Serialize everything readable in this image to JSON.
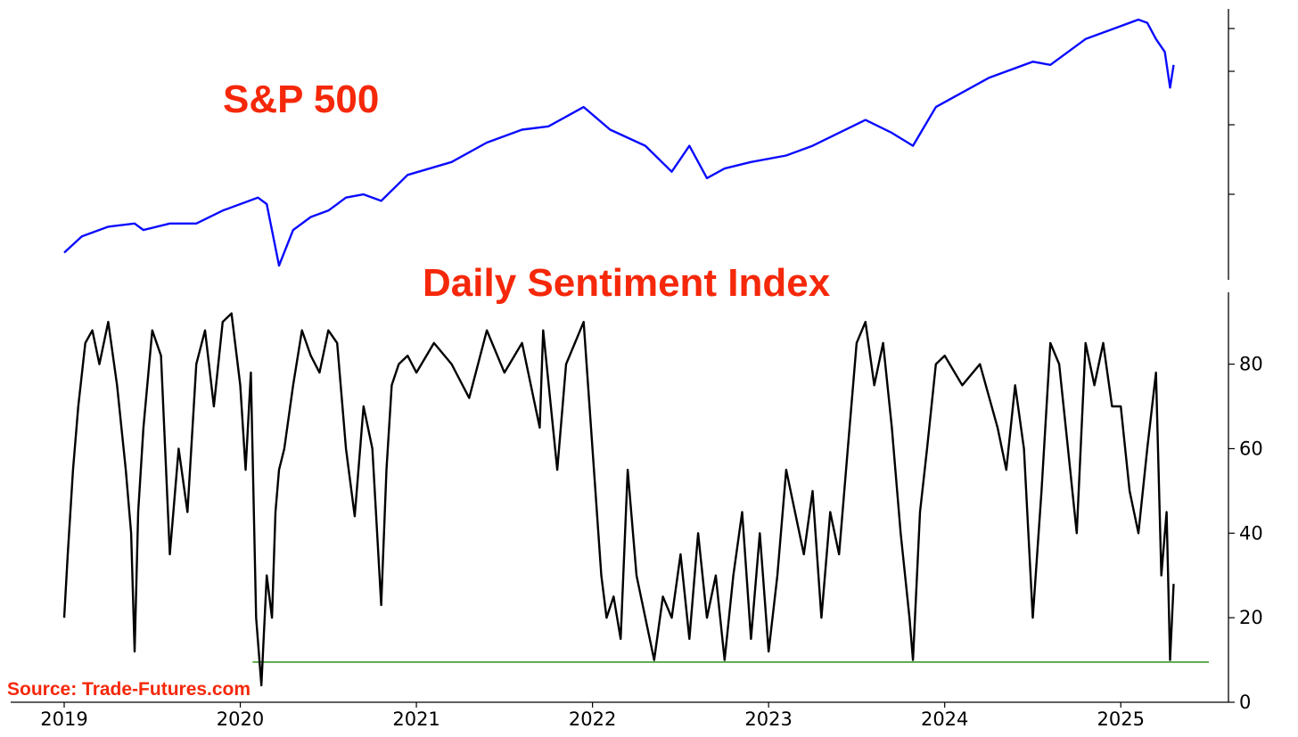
{
  "colors": {
    "sp500": "#0a0aff",
    "dsi": "#000000",
    "threshold": "#3c9a2c",
    "title": "#f5280a",
    "axis": "#000000"
  },
  "labels": {
    "sp500_title": "S&P 500",
    "dsi_title": "Daily Sentiment Index",
    "source": "Source: Trade-Futures.com"
  },
  "chart_data": [
    {
      "type": "line",
      "title": "S&P 500",
      "series": [
        {
          "name": "S&P 500",
          "x": [
            2019.0,
            2019.1,
            2019.25,
            2019.4,
            2019.45,
            2019.6,
            2019.75,
            2019.9,
            2020.1,
            2020.15,
            2020.22,
            2020.3,
            2020.4,
            2020.5,
            2020.6,
            2020.7,
            2020.8,
            2020.95,
            2021.2,
            2021.4,
            2021.6,
            2021.75,
            2021.85,
            2021.95,
            2022.1,
            2022.3,
            2022.45,
            2022.55,
            2022.65,
            2022.75,
            2022.9,
            2023.1,
            2023.25,
            2023.55,
            2023.7,
            2023.82,
            2023.95,
            2024.25,
            2024.5,
            2024.6,
            2024.8,
            2024.95,
            2025.1,
            2025.15,
            2025.2,
            2025.25,
            2025.28,
            2025.3
          ],
          "values": [
            2500,
            2750,
            2900,
            2950,
            2850,
            2950,
            2950,
            3150,
            3350,
            3250,
            2300,
            2850,
            3050,
            3150,
            3350,
            3400,
            3300,
            3700,
            3900,
            4200,
            4400,
            4450,
            4600,
            4750,
            4400,
            4150,
            3750,
            4150,
            3650,
            3800,
            3900,
            4000,
            4150,
            4550,
            4350,
            4150,
            4750,
            5200,
            5450,
            5400,
            5800,
            5950,
            6100,
            6050,
            5800,
            5600,
            5050,
            5400
          ]
        }
      ]
    },
    {
      "type": "line",
      "title": "Daily Sentiment Index",
      "xlim": [
        2019,
        2025.5
      ],
      "ylim": [
        0,
        97
      ],
      "x_ticks": [
        "2019",
        "2020",
        "2021",
        "2022",
        "2023",
        "2024",
        "2025"
      ],
      "y_ticks": [
        "0",
        "20",
        "40",
        "60",
        "80"
      ],
      "threshold": 9.5,
      "series": [
        {
          "name": "Daily Sentiment Index",
          "x": [
            2019.0,
            2019.02,
            2019.05,
            2019.08,
            2019.12,
            2019.16,
            2019.2,
            2019.25,
            2019.3,
            2019.35,
            2019.38,
            2019.4,
            2019.42,
            2019.45,
            2019.5,
            2019.55,
            2019.6,
            2019.65,
            2019.7,
            2019.75,
            2019.8,
            2019.85,
            2019.9,
            2019.95,
            2020.0,
            2020.03,
            2020.06,
            2020.09,
            2020.12,
            2020.15,
            2020.18,
            2020.2,
            2020.22,
            2020.25,
            2020.3,
            2020.35,
            2020.4,
            2020.45,
            2020.5,
            2020.55,
            2020.6,
            2020.65,
            2020.7,
            2020.75,
            2020.8,
            2020.83,
            2020.86,
            2020.9,
            2020.95,
            2021.0,
            2021.1,
            2021.2,
            2021.3,
            2021.4,
            2021.5,
            2021.6,
            2021.7,
            2021.72,
            2021.8,
            2021.85,
            2021.9,
            2021.95,
            2022.0,
            2022.05,
            2022.08,
            2022.12,
            2022.16,
            2022.2,
            2022.25,
            2022.3,
            2022.35,
            2022.4,
            2022.45,
            2022.5,
            2022.55,
            2022.6,
            2022.65,
            2022.7,
            2022.75,
            2022.8,
            2022.85,
            2022.9,
            2022.95,
            2023.0,
            2023.05,
            2023.1,
            2023.15,
            2023.2,
            2023.25,
            2023.3,
            2023.35,
            2023.4,
            2023.45,
            2023.5,
            2023.55,
            2023.6,
            2023.65,
            2023.7,
            2023.75,
            2023.8,
            2023.82,
            2023.86,
            2023.9,
            2023.95,
            2024.0,
            2024.1,
            2024.2,
            2024.3,
            2024.35,
            2024.4,
            2024.45,
            2024.5,
            2024.55,
            2024.6,
            2024.65,
            2024.7,
            2024.75,
            2024.8,
            2024.85,
            2024.9,
            2024.95,
            2025.0,
            2025.05,
            2025.1,
            2025.15,
            2025.2,
            2025.23,
            2025.26,
            2025.28,
            2025.3
          ],
          "values": [
            20,
            35,
            55,
            70,
            85,
            88,
            80,
            90,
            75,
            55,
            40,
            12,
            45,
            65,
            88,
            82,
            35,
            60,
            45,
            80,
            88,
            70,
            90,
            92,
            75,
            55,
            78,
            20,
            4,
            30,
            20,
            45,
            55,
            60,
            75,
            88,
            82,
            78,
            88,
            85,
            60,
            44,
            70,
            60,
            23,
            55,
            75,
            80,
            82,
            78,
            85,
            80,
            72,
            88,
            78,
            85,
            65,
            88,
            55,
            80,
            85,
            90,
            60,
            30,
            20,
            25,
            15,
            55,
            30,
            20,
            10,
            25,
            20,
            35,
            15,
            40,
            20,
            30,
            10,
            30,
            45,
            15,
            40,
            12,
            30,
            55,
            45,
            35,
            50,
            20,
            45,
            35,
            60,
            85,
            90,
            75,
            85,
            65,
            40,
            20,
            10,
            45,
            60,
            80,
            82,
            75,
            80,
            65,
            55,
            75,
            60,
            20,
            50,
            85,
            80,
            60,
            40,
            85,
            75,
            85,
            70,
            70,
            50,
            40,
            60,
            78,
            30,
            45,
            10,
            28
          ]
        }
      ]
    }
  ]
}
